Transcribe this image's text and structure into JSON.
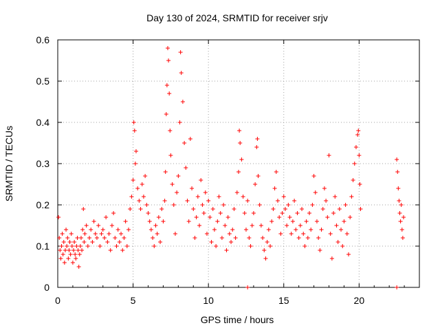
{
  "chart_data": {
    "type": "scatter",
    "title": "Day 130 of 2024, SRMTID for receiver srjv",
    "xlabel": "GPS time / hours",
    "ylabel": "SRMTID / TECUs",
    "xlim": [
      0,
      24
    ],
    "ylim": [
      0,
      0.6
    ],
    "xticks": [
      0,
      5,
      10,
      15,
      20
    ],
    "xtick_labels": [
      "0",
      "5",
      "10",
      "15",
      "20"
    ],
    "yticks": [
      0,
      0.1,
      0.2,
      0.3,
      0.4,
      0.5,
      0.6
    ],
    "ytick_labels": [
      "0",
      "0.1",
      "0.2",
      "0.3",
      "0.4",
      "0.5",
      "0.6"
    ],
    "grid": true,
    "marker": "+",
    "color": "#ff0000",
    "series": [
      {
        "name": "SRMTID",
        "points": [
          [
            0.05,
            0.17
          ],
          [
            0.1,
            0.12
          ],
          [
            0.15,
            0.09
          ],
          [
            0.2,
            0.07
          ],
          [
            0.25,
            0.1
          ],
          [
            0.3,
            0.13
          ],
          [
            0.35,
            0.08
          ],
          [
            0.4,
            0.11
          ],
          [
            0.45,
            0.06
          ],
          [
            0.5,
            0.09
          ],
          [
            0.55,
            0.14
          ],
          [
            0.6,
            0.1
          ],
          [
            0.65,
            0.12
          ],
          [
            0.7,
            0.07
          ],
          [
            0.75,
            0.09
          ],
          [
            0.8,
            0.11
          ],
          [
            0.85,
            0.08
          ],
          [
            0.9,
            0.13
          ],
          [
            0.95,
            0.1
          ],
          [
            1.0,
            0.06
          ],
          [
            1.05,
            0.09
          ],
          [
            1.1,
            0.11
          ],
          [
            1.15,
            0.08
          ],
          [
            1.2,
            0.07
          ],
          [
            1.25,
            0.1
          ],
          [
            1.3,
            0.12
          ],
          [
            1.35,
            0.09
          ],
          [
            1.4,
            0.05
          ],
          [
            1.45,
            0.08
          ],
          [
            1.5,
            0.1
          ],
          [
            1.55,
            0.12
          ],
          [
            1.6,
            0.09
          ],
          [
            1.65,
            0.14
          ],
          [
            1.7,
            0.19
          ],
          [
            1.75,
            0.11
          ],
          [
            1.8,
            0.13
          ],
          [
            1.9,
            0.15
          ],
          [
            2.0,
            0.1
          ],
          [
            2.1,
            0.12
          ],
          [
            2.2,
            0.14
          ],
          [
            2.3,
            0.11
          ],
          [
            2.4,
            0.16
          ],
          [
            2.5,
            0.13
          ],
          [
            2.6,
            0.12
          ],
          [
            2.7,
            0.15
          ],
          [
            2.8,
            0.1
          ],
          [
            2.9,
            0.13
          ],
          [
            3.0,
            0.14
          ],
          [
            3.1,
            0.12
          ],
          [
            3.2,
            0.17
          ],
          [
            3.3,
            0.11
          ],
          [
            3.4,
            0.13
          ],
          [
            3.5,
            0.09
          ],
          [
            3.6,
            0.15
          ],
          [
            3.7,
            0.18
          ],
          [
            3.8,
            0.12
          ],
          [
            3.9,
            0.1
          ],
          [
            4.0,
            0.14
          ],
          [
            4.1,
            0.11
          ],
          [
            4.2,
            0.13
          ],
          [
            4.3,
            0.09
          ],
          [
            4.4,
            0.12
          ],
          [
            4.5,
            0.16
          ],
          [
            4.6,
            0.1
          ],
          [
            4.7,
            0.14
          ],
          [
            4.8,
            0.19
          ],
          [
            4.9,
            0.22
          ],
          [
            5.0,
            0.26
          ],
          [
            5.05,
            0.4
          ],
          [
            5.1,
            0.38
          ],
          [
            5.15,
            0.3
          ],
          [
            5.2,
            0.33
          ],
          [
            5.3,
            0.24
          ],
          [
            5.4,
            0.21
          ],
          [
            5.5,
            0.19
          ],
          [
            5.6,
            0.25
          ],
          [
            5.7,
            0.22
          ],
          [
            5.8,
            0.27
          ],
          [
            5.9,
            0.2
          ],
          [
            6.0,
            0.18
          ],
          [
            6.1,
            0.16
          ],
          [
            6.2,
            0.14
          ],
          [
            6.3,
            0.12
          ],
          [
            6.4,
            0.1
          ],
          [
            6.5,
            0.15
          ],
          [
            6.6,
            0.13
          ],
          [
            6.7,
            0.17
          ],
          [
            6.8,
            0.11
          ],
          [
            6.9,
            0.19
          ],
          [
            7.0,
            0.16
          ],
          [
            7.1,
            0.21
          ],
          [
            7.15,
            0.28
          ],
          [
            7.2,
            0.42
          ],
          [
            7.25,
            0.49
          ],
          [
            7.3,
            0.58
          ],
          [
            7.35,
            0.55
          ],
          [
            7.4,
            0.47
          ],
          [
            7.45,
            0.38
          ],
          [
            7.5,
            0.32
          ],
          [
            7.6,
            0.25
          ],
          [
            7.7,
            0.2
          ],
          [
            7.8,
            0.13
          ],
          [
            7.9,
            0.23
          ],
          [
            8.0,
            0.27
          ],
          [
            8.1,
            0.4
          ],
          [
            8.15,
            0.57
          ],
          [
            8.2,
            0.52
          ],
          [
            8.3,
            0.45
          ],
          [
            8.4,
            0.35
          ],
          [
            8.5,
            0.29
          ],
          [
            8.6,
            0.21
          ],
          [
            8.7,
            0.16
          ],
          [
            8.8,
            0.36
          ],
          [
            8.9,
            0.24
          ],
          [
            9.0,
            0.19
          ],
          [
            9.1,
            0.12
          ],
          [
            9.2,
            0.17
          ],
          [
            9.3,
            0.22
          ],
          [
            9.4,
            0.15
          ],
          [
            9.5,
            0.26
          ],
          [
            9.6,
            0.2
          ],
          [
            9.7,
            0.18
          ],
          [
            9.8,
            0.23
          ],
          [
            9.9,
            0.13
          ],
          [
            10.0,
            0.21
          ],
          [
            10.1,
            0.17
          ],
          [
            10.2,
            0.11
          ],
          [
            10.3,
            0.19
          ],
          [
            10.4,
            0.14
          ],
          [
            10.5,
            0.1
          ],
          [
            10.6,
            0.16
          ],
          [
            10.7,
            0.22
          ],
          [
            10.8,
            0.18
          ],
          [
            10.9,
            0.12
          ],
          [
            11.0,
            0.2
          ],
          [
            11.1,
            0.15
          ],
          [
            11.2,
            0.09
          ],
          [
            11.3,
            0.17
          ],
          [
            11.4,
            0.13
          ],
          [
            11.5,
            0.11
          ],
          [
            11.6,
            0.14
          ],
          [
            11.7,
            0.19
          ],
          [
            11.8,
            0.12
          ],
          [
            11.9,
            0.23
          ],
          [
            12.0,
            0.28
          ],
          [
            12.05,
            0.38
          ],
          [
            12.1,
            0.35
          ],
          [
            12.2,
            0.31
          ],
          [
            12.3,
            0.22
          ],
          [
            12.4,
            0.18
          ],
          [
            12.5,
            0.14
          ],
          [
            12.6,
            0.21
          ],
          [
            12.7,
            0.12
          ],
          [
            12.8,
            0.1
          ],
          [
            12.9,
            0.15
          ],
          [
            13.0,
            0.18
          ],
          [
            13.1,
            0.25
          ],
          [
            13.2,
            0.34
          ],
          [
            13.25,
            0.36
          ],
          [
            13.3,
            0.27
          ],
          [
            13.4,
            0.2
          ],
          [
            13.5,
            0.15
          ],
          [
            13.6,
            0.12
          ],
          [
            13.7,
            0.09
          ],
          [
            13.8,
            0.07
          ],
          [
            13.9,
            0.11
          ],
          [
            14.0,
            0.14
          ],
          [
            14.1,
            0.1
          ],
          [
            14.2,
            0.16
          ],
          [
            14.3,
            0.19
          ],
          [
            14.4,
            0.24
          ],
          [
            14.5,
            0.28
          ],
          [
            14.6,
            0.21
          ],
          [
            14.7,
            0.17
          ],
          [
            14.8,
            0.13
          ],
          [
            14.9,
            0.18
          ],
          [
            15.0,
            0.22
          ],
          [
            15.1,
            0.19
          ],
          [
            15.2,
            0.15
          ],
          [
            15.3,
            0.2
          ],
          [
            15.4,
            0.17
          ],
          [
            15.5,
            0.13
          ],
          [
            15.6,
            0.16
          ],
          [
            15.7,
            0.21
          ],
          [
            15.8,
            0.14
          ],
          [
            15.9,
            0.18
          ],
          [
            16.0,
            0.12
          ],
          [
            16.1,
            0.15
          ],
          [
            16.2,
            0.19
          ],
          [
            16.3,
            0.13
          ],
          [
            16.4,
            0.1
          ],
          [
            16.5,
            0.16
          ],
          [
            16.6,
            0.12
          ],
          [
            16.7,
            0.18
          ],
          [
            16.8,
            0.14
          ],
          [
            16.9,
            0.2
          ],
          [
            17.0,
            0.27
          ],
          [
            17.1,
            0.23
          ],
          [
            17.2,
            0.16
          ],
          [
            17.3,
            0.12
          ],
          [
            17.4,
            0.09
          ],
          [
            17.5,
            0.14
          ],
          [
            17.6,
            0.19
          ],
          [
            17.7,
            0.24
          ],
          [
            17.8,
            0.21
          ],
          [
            17.9,
            0.17
          ],
          [
            18.0,
            0.32
          ],
          [
            18.1,
            0.13
          ],
          [
            18.2,
            0.07
          ],
          [
            18.3,
            0.18
          ],
          [
            18.4,
            0.22
          ],
          [
            18.5,
            0.15
          ],
          [
            18.6,
            0.11
          ],
          [
            18.7,
            0.19
          ],
          [
            18.8,
            0.14
          ],
          [
            18.9,
            0.1
          ],
          [
            19.0,
            0.16
          ],
          [
            19.1,
            0.2
          ],
          [
            19.2,
            0.13
          ],
          [
            19.3,
            0.08
          ],
          [
            19.4,
            0.17
          ],
          [
            19.5,
            0.22
          ],
          [
            19.6,
            0.26
          ],
          [
            19.7,
            0.3
          ],
          [
            19.8,
            0.34
          ],
          [
            19.9,
            0.37
          ],
          [
            19.95,
            0.38
          ],
          [
            20.0,
            0.32
          ],
          [
            20.05,
            0.25
          ],
          [
            20.1,
            0.19
          ],
          [
            22.5,
            0.31
          ],
          [
            22.55,
            0.28
          ],
          [
            22.6,
            0.24
          ],
          [
            22.65,
            0.21
          ],
          [
            22.7,
            0.18
          ],
          [
            22.75,
            0.16
          ],
          [
            22.8,
            0.2
          ],
          [
            22.85,
            0.14
          ],
          [
            22.9,
            0.12
          ],
          [
            22.95,
            0.17
          ],
          [
            12.6,
            0.0
          ],
          [
            22.5,
            0.0
          ]
        ]
      }
    ]
  }
}
